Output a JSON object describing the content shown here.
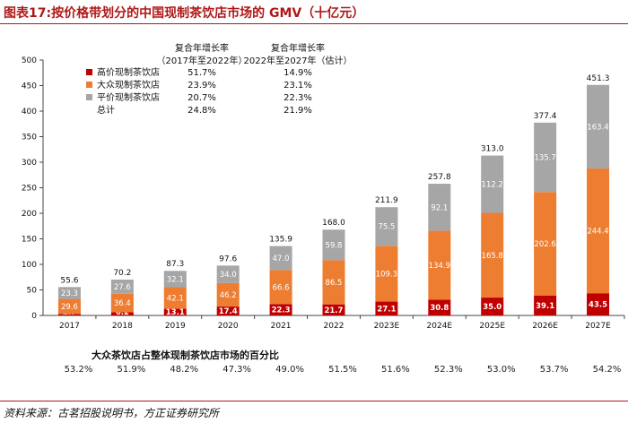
{
  "title": "图表17:按价格带划分的中国现制茶饮店市场的 GMV（十亿元）",
  "colors": {
    "high": "#c00000",
    "mass": "#ed7d31",
    "budget": "#a6a6a6",
    "accent": "#b01818"
  },
  "cagr_table": {
    "header1": [
      "复合年增长率",
      "（2017年至2022年）"
    ],
    "header2": [
      "复合年增长率",
      "2022年至2027年（估计）"
    ],
    "rows": [
      {
        "label": "高价现制茶饮店",
        "v1": "51.7%",
        "v2": "14.9%",
        "color": "#c00000"
      },
      {
        "label": "大众现制茶饮店",
        "v1": "23.9%",
        "v2": "23.1%",
        "color": "#ed7d31"
      },
      {
        "label": "平价现制茶饮店",
        "v1": "20.7%",
        "v2": "22.3%",
        "color": "#a6a6a6"
      },
      {
        "label": "总计",
        "v1": "24.8%",
        "v2": "21.9%",
        "color": ""
      }
    ]
  },
  "chart_data": {
    "type": "bar",
    "stacked": true,
    "categories": [
      "2017",
      "2018",
      "2019",
      "2020",
      "2021",
      "2022",
      "2023E",
      "2024E",
      "2025E",
      "2026E",
      "2027E"
    ],
    "series": [
      {
        "name": "高价现制茶饮店",
        "values": [
          2.7,
          6.2,
          13.1,
          17.4,
          22.3,
          21.7,
          27.1,
          30.8,
          35.0,
          39.1,
          43.5
        ]
      },
      {
        "name": "大众现制茶饮店",
        "values": [
          29.6,
          36.4,
          42.1,
          46.2,
          66.6,
          86.5,
          109.3,
          134.9,
          165.8,
          202.6,
          244.4
        ]
      },
      {
        "name": "平价现制茶饮店",
        "values": [
          23.3,
          27.6,
          32.1,
          34.0,
          47.0,
          59.8,
          75.5,
          92.1,
          112.2,
          135.7,
          163.4
        ]
      }
    ],
    "series_labels": [
      [
        "2.7",
        "6.2",
        "13.1",
        "17.4",
        "22.3",
        "21.7",
        "27.1",
        "30.8",
        "35.0",
        "39.1",
        "43.5"
      ],
      [
        "29.6",
        "36.4",
        "42.1",
        "46.2",
        "66.6",
        "86.5",
        "109.3",
        "134.9",
        "165.8",
        "202.6",
        "244.4"
      ],
      [
        "23.3",
        "27.6",
        "32.1",
        "34.0",
        "47.0",
        "59.8",
        "75.5",
        "92.1",
        "112.2",
        "135.7",
        "163.4"
      ]
    ],
    "totals": [
      "55.6",
      "70.2",
      "87.3",
      "97.6",
      "135.9",
      "168.0",
      "211.9",
      "257.8",
      "313.0",
      "377.4",
      "451.3"
    ],
    "ylim": [
      0,
      500
    ],
    "yticks": [
      "0",
      "50",
      "100",
      "150",
      "200",
      "250",
      "300",
      "350",
      "400",
      "450",
      "500"
    ],
    "xlabel": "",
    "ylabel": "",
    "legend_position": "top-left"
  },
  "pct_table": {
    "title": "大众茶饮店占整体现制茶饮店市场的百分比",
    "values": [
      "53.2%",
      "51.9%",
      "48.2%",
      "47.3%",
      "49.0%",
      "51.5%",
      "51.6%",
      "52.3%",
      "53.0%",
      "53.7%",
      "54.2%"
    ]
  },
  "source": "资料来源：古茗招股说明书，方正证券研究所"
}
